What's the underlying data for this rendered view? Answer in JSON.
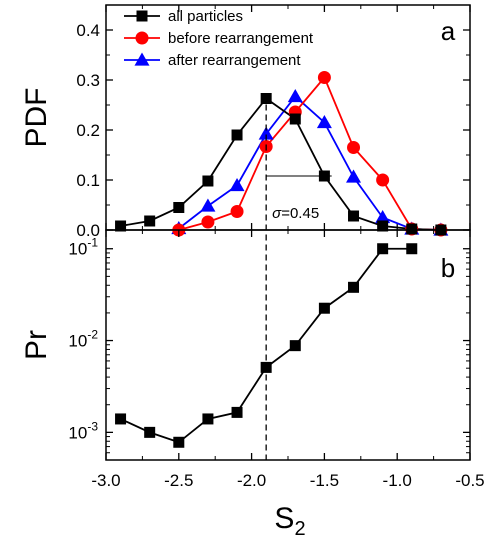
{
  "chart_data": [
    {
      "panel": "a",
      "type": "line",
      "ylabel": "PDF",
      "xlabel": "",
      "xlim": [
        -3.0,
        -0.5
      ],
      "ylim": [
        0.0,
        0.45
      ],
      "yticks": [
        "0.0",
        "0.1",
        "0.2",
        "0.3",
        "0.4"
      ],
      "ytick_values": [
        0.0,
        0.1,
        0.2,
        0.3,
        0.4
      ],
      "legend_position": "top-left",
      "series": [
        {
          "name": "all particles",
          "color": "#000000",
          "marker": "square",
          "x": [
            -2.9,
            -2.7,
            -2.5,
            -2.3,
            -2.1,
            -1.9,
            -1.7,
            -1.5,
            -1.3,
            -1.1,
            -0.9,
            -0.7
          ],
          "y": [
            0.008,
            0.018,
            0.045,
            0.098,
            0.19,
            0.263,
            0.222,
            0.108,
            0.028,
            0.008,
            0.002,
            0.0
          ]
        },
        {
          "name": "before rearrangement",
          "color": "#ff0000",
          "marker": "circle",
          "x": [
            -2.5,
            -2.3,
            -2.1,
            -1.9,
            -1.7,
            -1.5,
            -1.3,
            -1.1,
            -0.9,
            -0.7
          ],
          "y": [
            0.0,
            0.016,
            0.037,
            0.167,
            0.236,
            0.305,
            0.165,
            0.1,
            0.002,
            0.0
          ]
        },
        {
          "name": "after rearrangement",
          "color": "#0000ff",
          "marker": "triangle",
          "x": [
            -2.5,
            -2.3,
            -2.1,
            -1.9,
            -1.7,
            -1.5,
            -1.3,
            -1.1,
            -0.9,
            -0.7
          ],
          "y": [
            0.003,
            0.048,
            0.089,
            0.192,
            0.267,
            0.215,
            0.106,
            0.025,
            0.002,
            0.0
          ]
        }
      ],
      "annotation": {
        "symbol": "σ",
        "text": "=0.45",
        "from_x": -1.9,
        "to_x": -1.45,
        "y": 0.108
      }
    },
    {
      "panel": "b",
      "type": "line",
      "ylabel": "Pr",
      "xlabel": "S2",
      "xlabel_main": "S",
      "xlabel_sub": "2",
      "yscale": "log",
      "ylim": [
        0.0005,
        0.16
      ],
      "xlim": [
        -3.0,
        -0.5
      ],
      "xticks": [
        "-3.0",
        "-2.5",
        "-2.0",
        "-1.5",
        "-1.0",
        "-0.5"
      ],
      "xtick_values": [
        -3.0,
        -2.5,
        -2.0,
        -1.5,
        -1.0,
        -0.5
      ],
      "ytick_base": "10",
      "ytick_exponents": [
        "-3",
        "-2",
        "-1"
      ],
      "ytick_values": [
        0.001,
        0.01,
        0.1
      ],
      "series": [
        {
          "name": "",
          "color": "#000000",
          "marker": "square",
          "x": [
            -2.9,
            -2.7,
            -2.5,
            -2.3,
            -2.1,
            -1.9,
            -1.7,
            -1.5,
            -1.3,
            -1.1,
            -0.9
          ],
          "y": [
            0.0014,
            0.001,
            0.00078,
            0.0014,
            0.00165,
            0.0051,
            0.0088,
            0.0225,
            0.038,
            0.1,
            0.1
          ]
        }
      ],
      "vline_x": -1.9
    }
  ],
  "labels": {
    "panel_a": "a",
    "panel_b": "b"
  }
}
